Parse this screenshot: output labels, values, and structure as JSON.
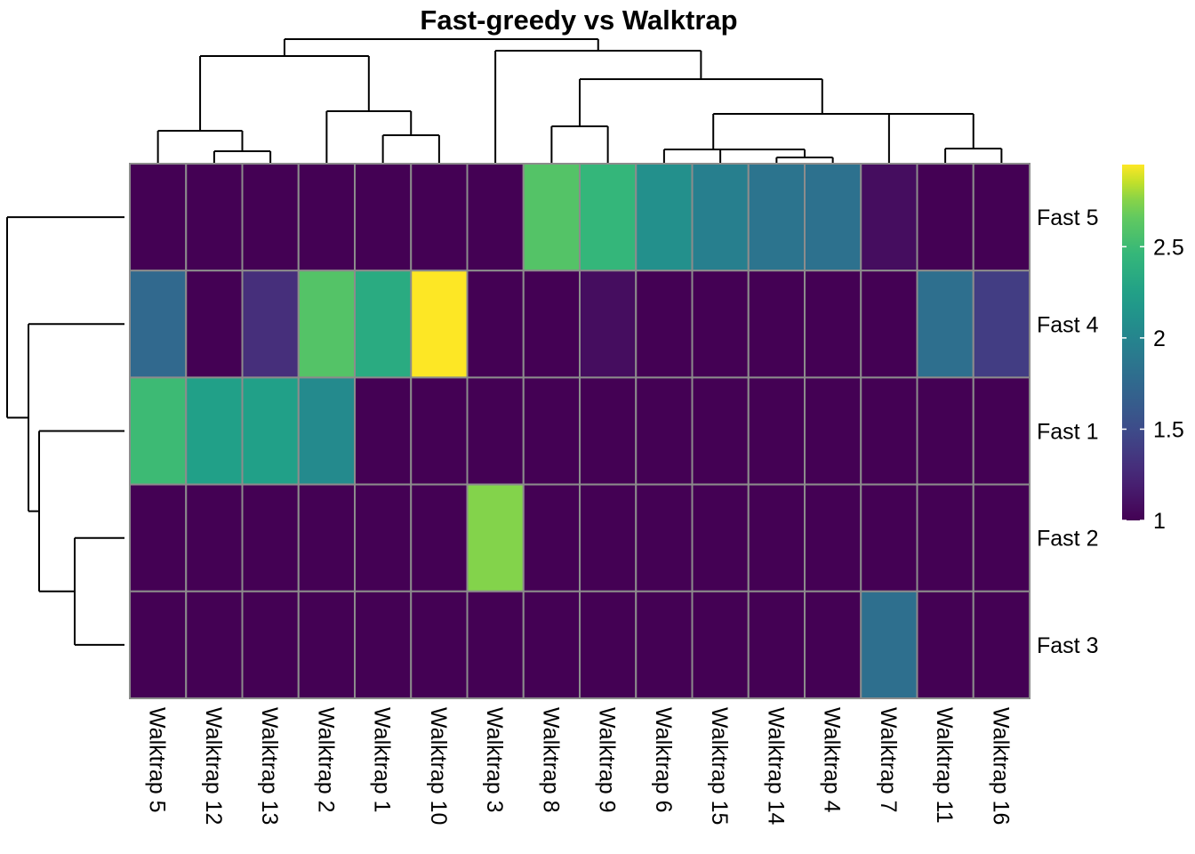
{
  "chart_data": {
    "type": "heatmap",
    "title": "Fast-greedy vs Walktrap",
    "rows": [
      "Fast 5",
      "Fast 4",
      "Fast 1",
      "Fast 2",
      "Fast 3"
    ],
    "columns": [
      "Walktrap 5",
      "Walktrap 12",
      "Walktrap 13",
      "Walktrap 2",
      "Walktrap 1",
      "Walktrap 10",
      "Walktrap 3",
      "Walktrap 8",
      "Walktrap 9",
      "Walktrap 6",
      "Walktrap 15",
      "Walktrap 14",
      "Walktrap 4",
      "Walktrap 7",
      "Walktrap 11",
      "Walktrap 16"
    ],
    "values": [
      [
        1.0,
        1.0,
        1.0,
        1.0,
        1.0,
        1.0,
        1.0,
        2.6,
        2.45,
        2.1,
        1.95,
        1.85,
        1.82,
        1.08,
        1.0,
        1.0
      ],
      [
        1.75,
        1.0,
        1.3,
        2.6,
        2.35,
        2.95,
        1.0,
        1.0,
        1.08,
        1.0,
        1.0,
        1.0,
        1.0,
        1.0,
        1.8,
        1.4
      ],
      [
        2.5,
        2.25,
        2.25,
        2.05,
        1.0,
        1.0,
        1.0,
        1.0,
        1.0,
        1.0,
        1.0,
        1.0,
        1.0,
        1.0,
        1.0,
        1.0
      ],
      [
        1.0,
        1.0,
        1.0,
        1.0,
        1.0,
        1.0,
        2.75,
        1.0,
        1.0,
        1.0,
        1.0,
        1.0,
        1.0,
        1.0,
        1.0,
        1.0
      ],
      [
        1.0,
        1.0,
        1.0,
        1.0,
        1.0,
        1.0,
        1.0,
        1.0,
        1.0,
        1.0,
        1.0,
        1.0,
        1.0,
        1.8,
        1.0,
        1.0
      ]
    ],
    "color_scale": {
      "palette": "viridis",
      "min": 1,
      "max": 2.95,
      "ticks": [
        1,
        1.5,
        2,
        2.5
      ],
      "tick_labels": [
        "1",
        "1.5",
        "2",
        "2.5"
      ]
    },
    "row_dendrogram": "(Fast 5,(Fast 4,(Fast 1,(Fast 2,Fast 3))))",
    "column_dendrogram": "(((5,(12,13)),(2,(1,10))),(3,((8,9),((6,(15,(14,4))),(7,(11,16))))))",
    "legend_position": "right"
  }
}
